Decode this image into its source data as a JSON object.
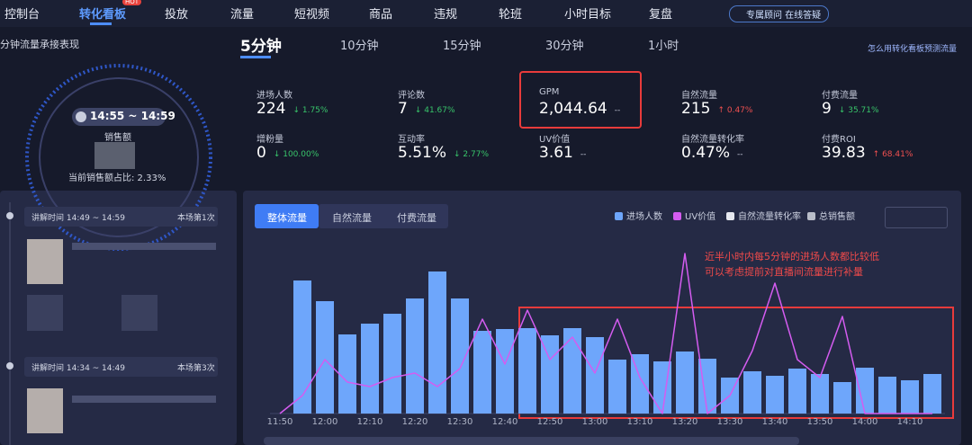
{
  "nav": {
    "items": [
      "控制台",
      "转化看板",
      "投放",
      "流量",
      "短视频",
      "商品",
      "违规",
      "轮班",
      "小时目标",
      "复盘"
    ],
    "active": 1,
    "hot": "HOT",
    "advisor": "专属顾问 在线答疑"
  },
  "section_title": "分钟流量承接表现",
  "tabs": {
    "items": [
      "5分钟",
      "10分钟",
      "15分钟",
      "30分钟",
      "1小时"
    ],
    "active": 0
  },
  "help": "怎么用转化看板预测流量",
  "gauge": {
    "time": "14:55 ~ 14:59",
    "label": "销售额",
    "share": "当前销售额占比: 2.33%"
  },
  "metrics": [
    {
      "label": "进场人数",
      "value": "224",
      "change": "↓ 1.75%"
    },
    {
      "label": "评论数",
      "value": "7",
      "change": "↓ 41.67%"
    },
    {
      "label": "GPM",
      "value": "2,044.64",
      "change": "--"
    },
    {
      "label": "自然流量",
      "value": "215",
      "change": "↑ 0.47%"
    },
    {
      "label": "付费流量",
      "value": "9",
      "change": "↓ 35.71%"
    },
    {
      "label": "增粉量",
      "value": "0",
      "change": "↓ 100.00%"
    },
    {
      "label": "互动率",
      "value": "5.51%",
      "change": "↓ 2.77%"
    },
    {
      "label": "UV价值",
      "value": "3.61",
      "change": "--"
    },
    {
      "label": "自然流量转化率",
      "value": "0.47%",
      "change": "--"
    },
    {
      "label": "付费ROI",
      "value": "39.83",
      "change": "↑ 68.41%"
    }
  ],
  "explain_cards": [
    {
      "time": "讲解时间 14:49 ~ 14:59",
      "count": "本场第1次"
    },
    {
      "time": "讲解时间 14:34 ~ 14:49",
      "count": "本场第3次"
    }
  ],
  "chart_tabs": {
    "items": [
      "整体流量",
      "自然流量",
      "付费流量"
    ],
    "active": 0
  },
  "chart_data": {
    "type": "bar",
    "categories": [
      "11:50",
      null,
      "12:00",
      null,
      "12:10",
      null,
      "12:20",
      null,
      "12:30",
      null,
      "12:40",
      null,
      "12:50",
      null,
      "13:00",
      null,
      "13:10",
      null,
      "13:20",
      null,
      "13:30",
      null,
      "13:40",
      null,
      "13:50",
      null,
      "14:00",
      null,
      "14:10",
      null
    ],
    "series": [
      {
        "name": "进场人数",
        "color": "#6ea6fb",
        "type": "bar",
        "values": [
          null,
          148,
          125,
          88,
          100,
          111,
          128,
          158,
          128,
          92,
          94,
          95,
          87,
          95,
          85,
          60,
          66,
          58,
          69,
          61,
          40,
          47,
          42,
          50,
          44,
          35,
          51,
          41,
          37,
          44
        ]
      },
      {
        "name": "UV价值",
        "color": "#d45cf0",
        "type": "line",
        "values": [
          0,
          20,
          60,
          35,
          30,
          40,
          45,
          30,
          50,
          105,
          55,
          115,
          60,
          85,
          45,
          105,
          40,
          0,
          178,
          0,
          20,
          70,
          145,
          60,
          40,
          108,
          0,
          0,
          0,
          0
        ]
      },
      {
        "name": "自然流量转化率",
        "color": "#e6e8ef",
        "type": "line",
        "values": [
          null,
          null,
          null,
          null,
          null,
          null,
          null,
          null,
          null,
          null,
          null,
          null,
          null,
          null,
          null,
          null,
          null,
          null,
          null,
          null,
          null,
          null,
          null,
          null,
          null,
          null,
          null,
          null,
          null,
          null
        ]
      },
      {
        "name": "总销售额",
        "color": "#b9bdc9",
        "type": "line",
        "values": [
          null,
          null,
          null,
          null,
          null,
          null,
          null,
          null,
          null,
          null,
          null,
          null,
          null,
          null,
          null,
          null,
          null,
          null,
          null,
          null,
          null,
          null,
          null,
          null,
          null,
          null,
          null,
          null,
          null,
          null
        ]
      }
    ],
    "ylim": [
      0,
      180
    ],
    "annotation": [
      "近半小时内每5分钟的进场人数都比较低",
      "可以考虑提前对直播间流量进行补量"
    ]
  }
}
